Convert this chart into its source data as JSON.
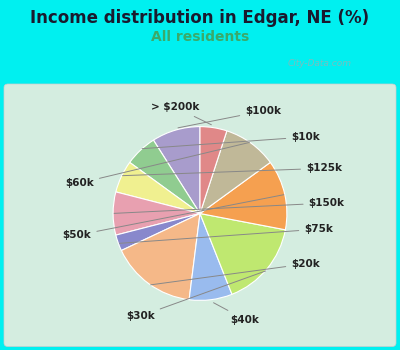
{
  "title": "Income distribution in Edgar, NE (%)",
  "subtitle": "All residents",
  "title_color": "#1a1a2e",
  "subtitle_color": "#3aaa6a",
  "background_outer": "#00f0f0",
  "background_inner_top": "#d8f0e8",
  "background_inner_bottom": "#e8f8f0",
  "watermark": "City-Data.com",
  "labels": [
    "$100k",
    "$10k",
    "$125k",
    "$150k",
    "$75k",
    "$20k",
    "$40k",
    "$30k",
    "$50k",
    "$60k",
    "> $200k"
  ],
  "values": [
    9,
    6,
    6,
    8,
    3,
    16,
    8,
    16,
    13,
    10,
    5
  ],
  "colors": [
    "#a89ccc",
    "#90cc90",
    "#f0f090",
    "#e8a0b0",
    "#8888cc",
    "#f5b888",
    "#99bbee",
    "#bfe870",
    "#f5a050",
    "#c0b898",
    "#e08888"
  ],
  "startangle": 90,
  "label_fontsize": 7.5,
  "title_fontsize": 12,
  "subtitle_fontsize": 10,
  "label_color": "#222222"
}
